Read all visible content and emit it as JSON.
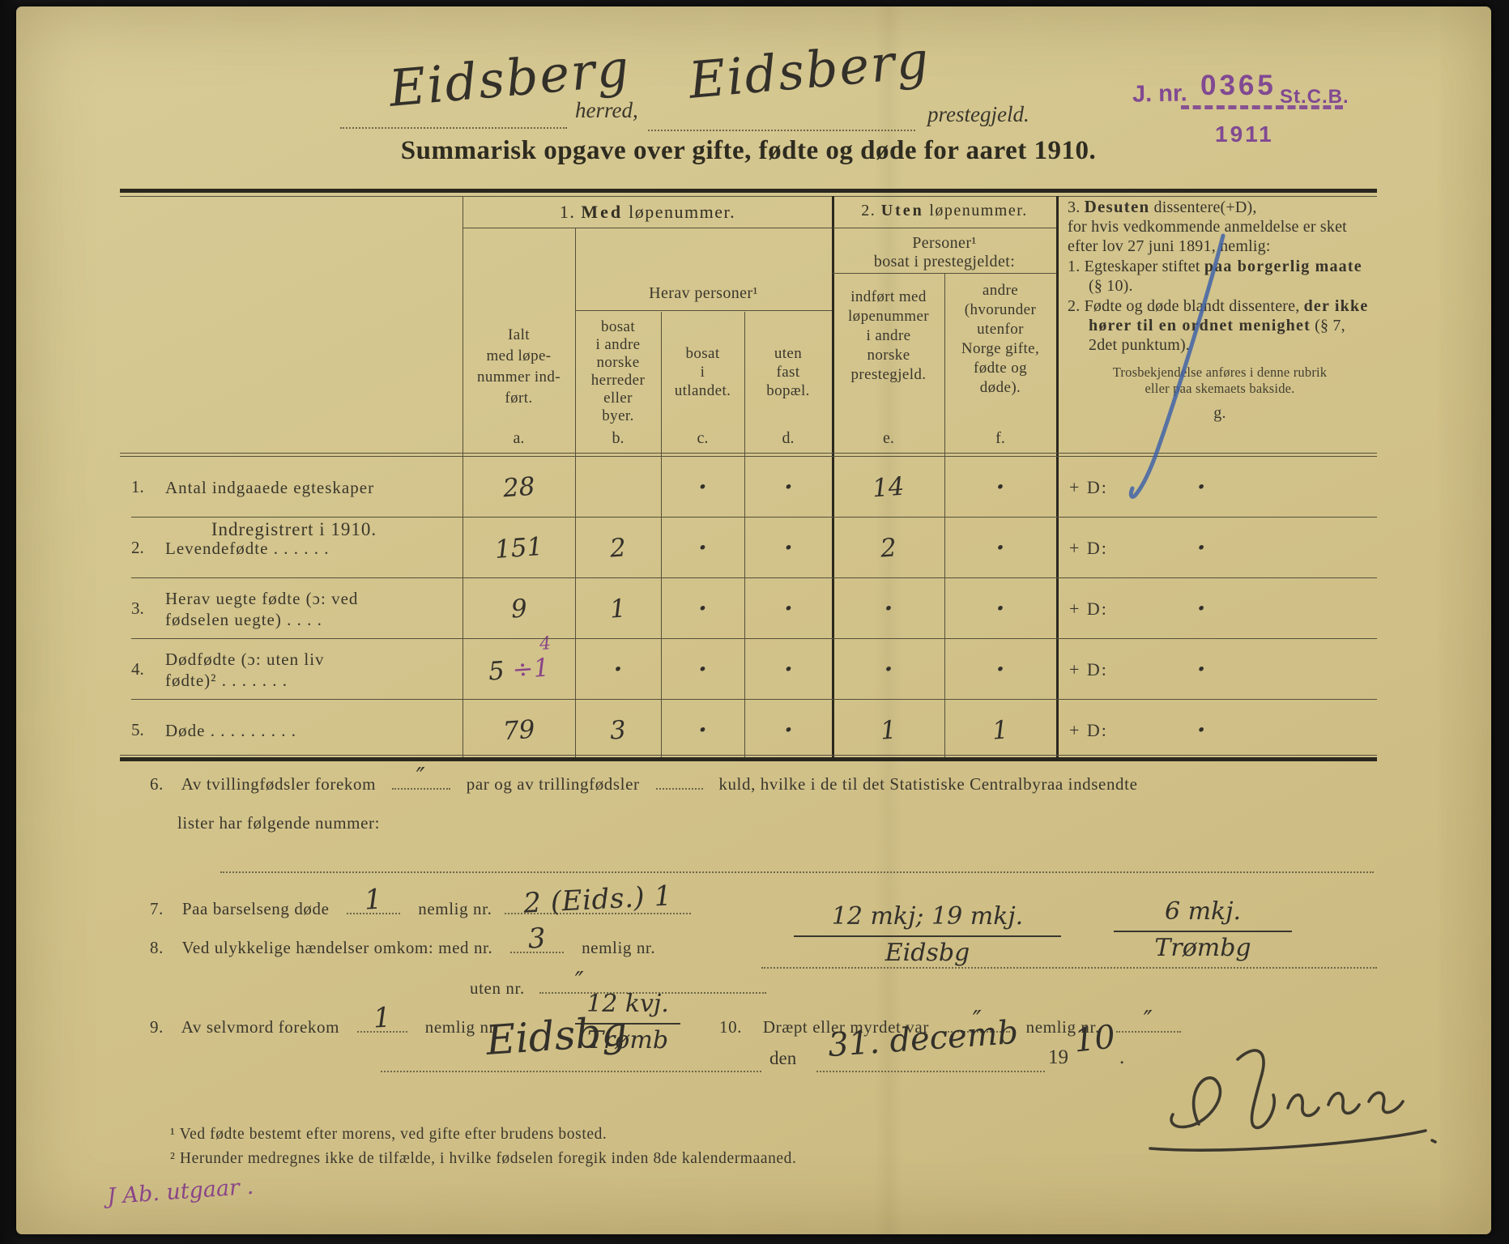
{
  "stamp": {
    "label": "J. nr.",
    "number": "0365",
    "org": "St.C.B.",
    "year": "1911"
  },
  "header": {
    "herred_value": "Eidsberg",
    "herred_label": "herred,",
    "prestegjeld_value": "Eidsberg",
    "prestegjeld_label": "prestegjeld.",
    "title": "Summarisk opgave over gifte, fødte og døde for aaret 1910."
  },
  "table": {
    "corner_label": "Indregistrert i 1910.",
    "group1": {
      "prefix": "1.",
      "bold": "Med",
      "suffix": "løpenummer."
    },
    "group2": {
      "prefix": "2.",
      "bold": "Uten",
      "suffix": "løpenummer."
    },
    "col_a": "Ialt\nmed løpe-\nnummer ind-\nført.",
    "herav": "Herav personer¹",
    "col_b": "bosat\ni andre\nnorske\nherreder\neller\nbyer.",
    "col_c": "bosat\ni\nutlandet.",
    "col_d": "uten\nfast\nbopæl.",
    "personer": "Personer¹\nbosat i prestegjeldet:",
    "col_e": "indført med\nløpenummer\ni andre\nnorske\nprestegjeld.",
    "col_f": "andre\n(hvorunder\nutenfor\nNorge gifte,\nfødte og\ndøde).",
    "col3": {
      "prefix": "3.",
      "bold": "Desuten",
      "suffix": "dissentere(+D),",
      "intro": "for hvis vedkommende anmeldelse er sket efter lov 27 juni 1891, nemlig:",
      "item1_no": "1.",
      "item1_a": "Egteskaper stiftet ",
      "item1_b": "paa borgerlig maate",
      "item1_c": " (§ 10).",
      "item2_no": "2.",
      "item2_a": "Fødte og døde blandt dissentere, ",
      "item2_b": "der ikke hører til en ordnet menighet",
      "item2_c": " (§ 7, 2det punktum).",
      "note": "Trosbekjendelse anføres i denne rubrik\neller paa skemaets bakside.",
      "letter": "g."
    },
    "letters": [
      "a.",
      "b.",
      "c.",
      "d.",
      "e.",
      "f."
    ],
    "plus_d": "+ D:",
    "rows": [
      {
        "no": "1.",
        "label": "Antal indgaaede egteskaper",
        "a": "28",
        "b": "",
        "c": ".",
        "d": ".",
        "e": "14",
        "f": ".",
        "g": "."
      },
      {
        "no": "2.",
        "label": "Levendefødte  .  .  .  .  .  .",
        "a": "151",
        "b": "2",
        "c": ".",
        "d": ".",
        "e": "2",
        "f": ".",
        "g": "."
      },
      {
        "no": "3.",
        "label": "Herav uegte fødte (ɔ: ved\nfødselen uegte)   .   .   .   .",
        "a": "9",
        "b": "1",
        "c": ".",
        "d": ".",
        "e": ".",
        "f": ".",
        "g": "."
      },
      {
        "no": "4.",
        "label": "Dødfødte (ɔ: uten liv\nfødte)²  .  .  .  .  .  .  .",
        "a": {
          "main": "5",
          "corr": "÷1",
          "sup": "4"
        },
        "b": ".",
        "c": ".",
        "d": ".",
        "e": ".",
        "f": ".",
        "g": "."
      },
      {
        "no": "5.",
        "label": "Døde .  .  .  .  .  .  .  .  .",
        "a": "79",
        "b": "3",
        "c": ".",
        "d": ".",
        "e": "1",
        "f": "1",
        "g": "."
      }
    ]
  },
  "sections": {
    "s6": {
      "no": "6.",
      "t1": "Av tvillingfødsler forekom",
      "h1": "″",
      "t2": "par og av trillingfødsler",
      "t3": "kuld, hvilke i de til det Statistiske Centralbyraa indsendte",
      "t4": "lister har følgende nummer:"
    },
    "s7": {
      "no": "7.",
      "t1": "Paa barselseng døde",
      "h1": "1",
      "t2": "nemlig nr.",
      "h2": "2 (Eids.) 1"
    },
    "s8": {
      "no": "8.",
      "t1": "Ved ulykkelige hændelser omkom:  med nr.",
      "h1": "3",
      "t2": "nemlig nr.",
      "ann1_top": "12 mkj; 19 mkj.",
      "ann1_bot": "Eidsbg",
      "ann2_top": "6 mkj.",
      "ann2_bot": "Trømbg",
      "t3": "uten nr.",
      "h2": "″"
    },
    "s9": {
      "no": "9.",
      "t1": "Av selvmord forekom",
      "h1": "1",
      "t2": "nemlig nr.",
      "ann_top": "12 kvj.",
      "ann_bot": "Trømb"
    },
    "s10": {
      "no": "10.",
      "t1": "Dræpt eller myrdet var",
      "h1": "″",
      "t2": "nemlig nr.",
      "h2": "″"
    },
    "datum": {
      "place": "Eidsbg",
      "den": "den",
      "date": "31. decemb",
      "printed19": "19",
      "year": "10",
      "dot": "."
    }
  },
  "footnotes": {
    "f1": "¹ Ved fødte bestemt efter morens, ved gifte efter brudens bosted.",
    "f2": "² Herunder medregnes ikke de tilfælde, i hvilke fødselen foregik inden 8de kalendermaaned."
  },
  "margin_note": "J Ab. utgaar .",
  "colors": {
    "stamp_purple": "#7b3f93",
    "hand_purple": "#8a4587",
    "pen_blue": "#3c60a8",
    "ink": "#35322a"
  }
}
